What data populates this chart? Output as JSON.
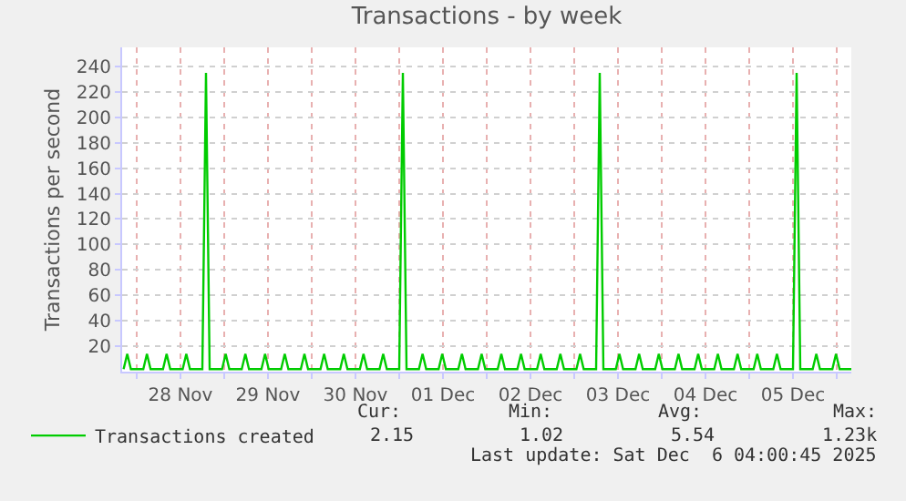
{
  "chart_data": {
    "type": "line",
    "title": "Transactions - by week",
    "ylabel": "Transactions per second",
    "x": [
      "2025-11-27T20:24",
      "2025-11-27T21:24",
      "2025-11-27T22:24",
      "2025-11-28T01:48",
      "2025-11-28T02:48",
      "2025-11-28T03:48",
      "2025-11-28T07:12",
      "2025-11-28T08:12",
      "2025-11-28T09:12",
      "2025-11-28T12:36",
      "2025-11-28T13:36",
      "2025-11-28T14:36",
      "2025-11-28T18:00",
      "2025-11-28T19:00",
      "2025-11-28T20:00",
      "2025-11-28T23:24",
      "2025-11-29T00:24",
      "2025-11-29T01:24",
      "2025-11-29T04:48",
      "2025-11-29T05:48",
      "2025-11-29T06:48",
      "2025-11-29T10:12",
      "2025-11-29T11:12",
      "2025-11-29T12:12",
      "2025-11-29T15:36",
      "2025-11-29T16:36",
      "2025-11-29T17:36",
      "2025-11-29T21:00",
      "2025-11-29T22:00",
      "2025-11-29T23:00",
      "2025-11-30T02:24",
      "2025-11-30T03:24",
      "2025-11-30T04:24",
      "2025-11-30T07:48",
      "2025-11-30T08:48",
      "2025-11-30T09:48",
      "2025-11-30T13:12",
      "2025-11-30T14:12",
      "2025-11-30T15:12",
      "2025-11-30T18:36",
      "2025-11-30T19:36",
      "2025-11-30T20:36",
      "2025-12-01T00:00",
      "2025-12-01T01:00",
      "2025-12-01T02:00",
      "2025-12-01T05:24",
      "2025-12-01T06:24",
      "2025-12-01T07:24",
      "2025-12-01T10:48",
      "2025-12-01T11:48",
      "2025-12-01T12:48",
      "2025-12-01T16:12",
      "2025-12-01T17:12",
      "2025-12-01T18:12",
      "2025-12-01T21:36",
      "2025-12-01T22:36",
      "2025-12-01T23:36",
      "2025-12-02T03:00",
      "2025-12-02T04:00",
      "2025-12-02T05:00",
      "2025-12-02T08:24",
      "2025-12-02T09:24",
      "2025-12-02T10:24",
      "2025-12-02T13:48",
      "2025-12-02T14:48",
      "2025-12-02T15:48",
      "2025-12-02T19:12",
      "2025-12-02T20:12",
      "2025-12-02T21:12",
      "2025-12-03T00:36",
      "2025-12-03T01:36",
      "2025-12-03T02:36",
      "2025-12-03T06:00",
      "2025-12-03T07:00",
      "2025-12-03T08:00",
      "2025-12-03T11:24",
      "2025-12-03T12:24",
      "2025-12-03T13:24",
      "2025-12-03T16:48",
      "2025-12-03T17:48",
      "2025-12-03T18:48",
      "2025-12-03T22:12",
      "2025-12-03T23:12",
      "2025-12-04T00:12",
      "2025-12-04T03:36",
      "2025-12-04T04:36",
      "2025-12-04T05:36",
      "2025-12-04T09:00",
      "2025-12-04T10:00",
      "2025-12-04T11:00",
      "2025-12-04T14:24",
      "2025-12-04T15:24",
      "2025-12-04T16:24",
      "2025-12-04T19:48",
      "2025-12-04T20:48",
      "2025-12-04T21:48",
      "2025-12-05T01:12",
      "2025-12-05T02:12",
      "2025-12-05T03:12",
      "2025-12-05T06:36",
      "2025-12-05T07:36",
      "2025-12-05T08:36",
      "2025-12-05T12:00",
      "2025-12-05T13:00",
      "2025-12-05T14:00",
      "2025-12-05T17:24",
      "2025-12-05T18:24",
      "2025-12-05T19:24",
      "2025-12-05T22:48",
      "2025-12-05T23:48",
      "2025-12-06T00:48",
      "2025-12-06T04:00"
    ],
    "series": [
      {
        "name": "Transactions created",
        "color": "#00cc00",
        "values": [
          2,
          14,
          2,
          2,
          14,
          2,
          2,
          14,
          2,
          2,
          14,
          2,
          2,
          235,
          2,
          2,
          14,
          2,
          2,
          14,
          2,
          2,
          14,
          2,
          2,
          14,
          2,
          2,
          14,
          2,
          2,
          14,
          2,
          2,
          14,
          2,
          2,
          14,
          2,
          2,
          14,
          2,
          2,
          235,
          2,
          2,
          14,
          2,
          2,
          14,
          2,
          2,
          14,
          2,
          2,
          14,
          2,
          2,
          14,
          2,
          2,
          14,
          2,
          2,
          14,
          2,
          2,
          14,
          2,
          2,
          14,
          2,
          2,
          235,
          2,
          2,
          14,
          2,
          2,
          14,
          2,
          2,
          14,
          2,
          2,
          14,
          2,
          2,
          14,
          2,
          2,
          14,
          2,
          2,
          14,
          2,
          2,
          14,
          2,
          2,
          14,
          2,
          2,
          235,
          2,
          2,
          14,
          2,
          2,
          14,
          2,
          2
        ]
      }
    ],
    "xlim": [
      "2025-11-27T20:00",
      "2025-12-06T04:00"
    ],
    "xticks": [
      {
        "value": "2025-11-28T00:00",
        "label": null
      },
      {
        "value": "2025-11-28T12:00",
        "label": "28 Nov"
      },
      {
        "value": "2025-11-29T00:00",
        "label": null
      },
      {
        "value": "2025-11-29T12:00",
        "label": "29 Nov"
      },
      {
        "value": "2025-11-30T00:00",
        "label": null
      },
      {
        "value": "2025-11-30T12:00",
        "label": "30 Nov"
      },
      {
        "value": "2025-12-01T00:00",
        "label": null
      },
      {
        "value": "2025-12-01T12:00",
        "label": "01 Dec"
      },
      {
        "value": "2025-12-02T00:00",
        "label": null
      },
      {
        "value": "2025-12-02T12:00",
        "label": "02 Dec"
      },
      {
        "value": "2025-12-03T00:00",
        "label": null
      },
      {
        "value": "2025-12-03T12:00",
        "label": "03 Dec"
      },
      {
        "value": "2025-12-04T00:00",
        "label": null
      },
      {
        "value": "2025-12-04T12:00",
        "label": "04 Dec"
      },
      {
        "value": "2025-12-05T00:00",
        "label": null
      },
      {
        "value": "2025-12-05T12:00",
        "label": "05 Dec"
      },
      {
        "value": "2025-12-06T00:00",
        "label": null
      }
    ],
    "ylim": [
      0,
      255
    ],
    "yticks": [
      20,
      40,
      60,
      80,
      100,
      120,
      140,
      160,
      180,
      200,
      220,
      240
    ],
    "grid": true,
    "legend": "bottom left",
    "marker": "none",
    "line_style": "solid",
    "annotations": [
      "Cur:",
      "Min:",
      "Avg:",
      "Max:",
      "2.15",
      "1.02",
      "5.54",
      "1.23k",
      "Last update: Sat Dec  6 04:00:45 2025"
    ]
  }
}
